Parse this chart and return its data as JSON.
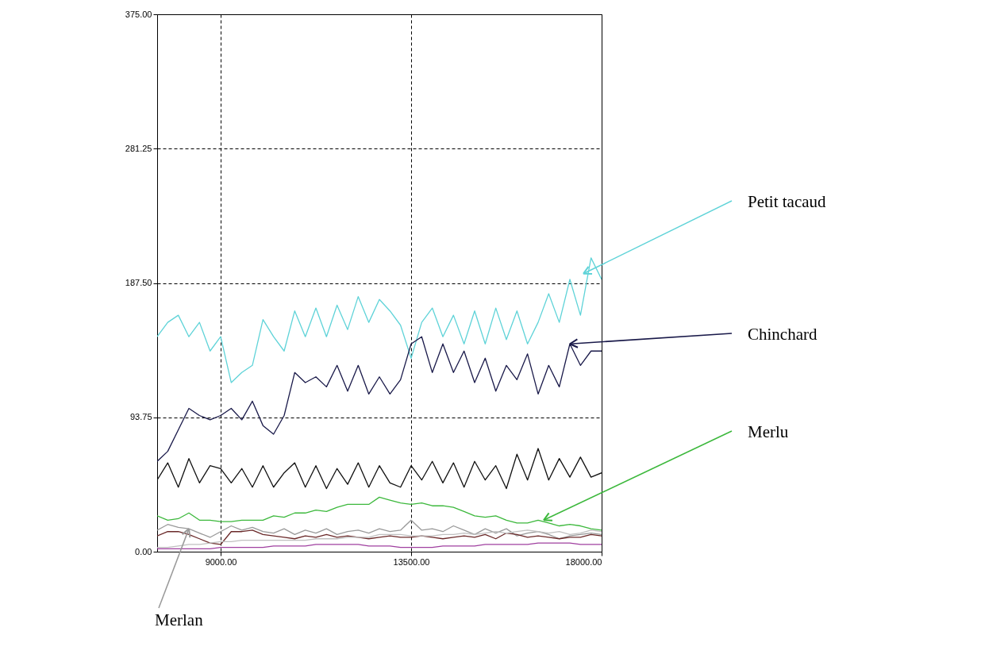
{
  "chart_data": {
    "type": "line",
    "x": [
      7500,
      7750,
      8000,
      8250,
      8500,
      8750,
      9000,
      9250,
      9500,
      9750,
      10000,
      10250,
      10500,
      10750,
      11000,
      11250,
      11500,
      11750,
      12000,
      12250,
      12500,
      12750,
      13000,
      13250,
      13500,
      13750,
      14000,
      14250,
      14500,
      14750,
      15000,
      15250,
      15500,
      15750,
      16000,
      16250,
      16500,
      16750,
      17000,
      17250,
      17500,
      17750,
      18000
    ],
    "xlim": [
      7500,
      18000
    ],
    "ylim": [
      0,
      375
    ],
    "xticks": [
      {
        "value": 9000,
        "label": "9000.00"
      },
      {
        "value": 13500,
        "label": "13500.00"
      },
      {
        "value": 18000,
        "label": "18000.00"
      }
    ],
    "yticks": [
      {
        "value": 0,
        "label": "0.00"
      },
      {
        "value": 93.75,
        "label": "93.75"
      },
      {
        "value": 187.5,
        "label": "187.50"
      },
      {
        "value": 281.25,
        "label": "281.25"
      },
      {
        "value": 375,
        "label": "375.00"
      }
    ],
    "grid": true,
    "series": [
      {
        "color": "#5fd3d8",
        "values": [
          150,
          160,
          165,
          150,
          160,
          140,
          150,
          118,
          125,
          130,
          162,
          150,
          140,
          168,
          150,
          170,
          150,
          172,
          155,
          178,
          160,
          176,
          168,
          158,
          135,
          160,
          170,
          150,
          165,
          145,
          168,
          145,
          170,
          148,
          168,
          145,
          160,
          180,
          160,
          190,
          165,
          205,
          190
        ]
      },
      {
        "color": "#1a1a4a",
        "values": [
          63,
          70,
          85,
          100,
          95,
          92,
          95,
          100,
          92,
          105,
          88,
          82,
          95,
          125,
          118,
          122,
          115,
          130,
          112,
          130,
          110,
          122,
          110,
          120,
          145,
          150,
          125,
          145,
          125,
          140,
          118,
          135,
          112,
          130,
          120,
          138,
          110,
          130,
          115,
          145,
          130,
          140,
          140
        ]
      },
      {
        "color": "#111111",
        "values": [
          50,
          62,
          45,
          65,
          48,
          60,
          58,
          48,
          58,
          45,
          60,
          45,
          55,
          62,
          45,
          60,
          44,
          58,
          47,
          62,
          45,
          60,
          48,
          45,
          60,
          50,
          63,
          48,
          62,
          45,
          63,
          50,
          60,
          44,
          68,
          50,
          72,
          50,
          65,
          52,
          66,
          52,
          55
        ]
      },
      {
        "color": "#3cb83c",
        "values": [
          25,
          22,
          23,
          27,
          22,
          22,
          21,
          21,
          22,
          22,
          22,
          25,
          24,
          27,
          27,
          29,
          28,
          31,
          33,
          33,
          33,
          38,
          36,
          34,
          33,
          34,
          32,
          32,
          31,
          28,
          25,
          24,
          25,
          22,
          20,
          20,
          22,
          20,
          18,
          19,
          18,
          16,
          15
        ]
      },
      {
        "color": "#999999",
        "values": [
          15,
          19,
          17,
          16,
          13,
          10,
          14,
          18,
          15,
          17,
          14,
          13,
          16,
          12,
          15,
          13,
          16,
          12,
          14,
          15,
          13,
          16,
          14,
          15,
          22,
          15,
          16,
          14,
          18,
          15,
          12,
          16,
          13,
          16,
          11,
          13,
          14,
          12,
          9,
          11,
          12,
          13,
          12
        ]
      },
      {
        "color": "#6b2a2a",
        "values": [
          11,
          14,
          14,
          12,
          9,
          6,
          5,
          14,
          14,
          15,
          12,
          11,
          10,
          9,
          11,
          10,
          12,
          10,
          11,
          10,
          9,
          10,
          11,
          10,
          10,
          11,
          10,
          9,
          10,
          11,
          10,
          12,
          9,
          13,
          12,
          10,
          11,
          10,
          9,
          10,
          10,
          12,
          11
        ]
      },
      {
        "color": "#c0c0c0",
        "values": [
          3,
          3,
          4,
          5,
          5,
          6,
          7,
          7,
          8,
          8,
          8,
          8,
          8,
          8,
          8,
          9,
          9,
          9,
          10,
          10,
          10,
          12,
          12,
          12,
          11,
          11,
          11,
          12,
          12,
          13,
          12,
          13,
          14,
          13,
          14,
          15,
          14,
          13,
          14,
          12,
          13,
          15,
          14
        ]
      },
      {
        "color": "#a040a0",
        "values": [
          2,
          2,
          2,
          2,
          2,
          2,
          3,
          3,
          3,
          3,
          3,
          4,
          4,
          4,
          4,
          5,
          5,
          5,
          5,
          5,
          4,
          4,
          4,
          3,
          3,
          3,
          3,
          4,
          4,
          4,
          4,
          5,
          5,
          5,
          5,
          5,
          6,
          6,
          6,
          6,
          5,
          5,
          5
        ]
      }
    ],
    "annotations": [
      {
        "text": "Petit tacaud",
        "x": 17569,
        "y": 194
      },
      {
        "text": "Chinchard",
        "x": 17250,
        "y": 145
      },
      {
        "text": "Merlu",
        "x": 16631,
        "y": 22
      },
      {
        "text": "Merlan",
        "x": 8250,
        "y": 16
      }
    ]
  }
}
